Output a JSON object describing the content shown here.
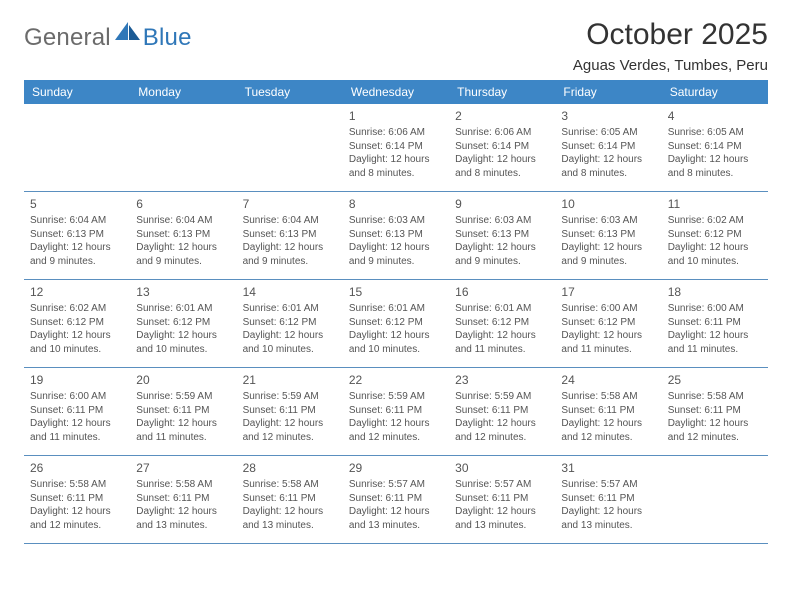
{
  "brand": {
    "name_a": "General",
    "name_b": "Blue"
  },
  "title": "October 2025",
  "subtitle": "Aguas Verdes, Tumbes, Peru",
  "colors": {
    "accent": "#3d86c6",
    "rule": "#5a8fbf",
    "text": "#333333",
    "muted": "#555555",
    "page_bg": "#ffffff"
  },
  "day_names": [
    "Sunday",
    "Monday",
    "Tuesday",
    "Wednesday",
    "Thursday",
    "Friday",
    "Saturday"
  ],
  "weeks": [
    [
      null,
      null,
      null,
      {
        "n": "1",
        "sunrise": "6:06 AM",
        "sunset": "6:14 PM",
        "daylight": "12 hours and 8 minutes."
      },
      {
        "n": "2",
        "sunrise": "6:06 AM",
        "sunset": "6:14 PM",
        "daylight": "12 hours and 8 minutes."
      },
      {
        "n": "3",
        "sunrise": "6:05 AM",
        "sunset": "6:14 PM",
        "daylight": "12 hours and 8 minutes."
      },
      {
        "n": "4",
        "sunrise": "6:05 AM",
        "sunset": "6:14 PM",
        "daylight": "12 hours and 8 minutes."
      }
    ],
    [
      {
        "n": "5",
        "sunrise": "6:04 AM",
        "sunset": "6:13 PM",
        "daylight": "12 hours and 9 minutes."
      },
      {
        "n": "6",
        "sunrise": "6:04 AM",
        "sunset": "6:13 PM",
        "daylight": "12 hours and 9 minutes."
      },
      {
        "n": "7",
        "sunrise": "6:04 AM",
        "sunset": "6:13 PM",
        "daylight": "12 hours and 9 minutes."
      },
      {
        "n": "8",
        "sunrise": "6:03 AM",
        "sunset": "6:13 PM",
        "daylight": "12 hours and 9 minutes."
      },
      {
        "n": "9",
        "sunrise": "6:03 AM",
        "sunset": "6:13 PM",
        "daylight": "12 hours and 9 minutes."
      },
      {
        "n": "10",
        "sunrise": "6:03 AM",
        "sunset": "6:13 PM",
        "daylight": "12 hours and 9 minutes."
      },
      {
        "n": "11",
        "sunrise": "6:02 AM",
        "sunset": "6:12 PM",
        "daylight": "12 hours and 10 minutes."
      }
    ],
    [
      {
        "n": "12",
        "sunrise": "6:02 AM",
        "sunset": "6:12 PM",
        "daylight": "12 hours and 10 minutes."
      },
      {
        "n": "13",
        "sunrise": "6:01 AM",
        "sunset": "6:12 PM",
        "daylight": "12 hours and 10 minutes."
      },
      {
        "n": "14",
        "sunrise": "6:01 AM",
        "sunset": "6:12 PM",
        "daylight": "12 hours and 10 minutes."
      },
      {
        "n": "15",
        "sunrise": "6:01 AM",
        "sunset": "6:12 PM",
        "daylight": "12 hours and 10 minutes."
      },
      {
        "n": "16",
        "sunrise": "6:01 AM",
        "sunset": "6:12 PM",
        "daylight": "12 hours and 11 minutes."
      },
      {
        "n": "17",
        "sunrise": "6:00 AM",
        "sunset": "6:12 PM",
        "daylight": "12 hours and 11 minutes."
      },
      {
        "n": "18",
        "sunrise": "6:00 AM",
        "sunset": "6:11 PM",
        "daylight": "12 hours and 11 minutes."
      }
    ],
    [
      {
        "n": "19",
        "sunrise": "6:00 AM",
        "sunset": "6:11 PM",
        "daylight": "12 hours and 11 minutes."
      },
      {
        "n": "20",
        "sunrise": "5:59 AM",
        "sunset": "6:11 PM",
        "daylight": "12 hours and 11 minutes."
      },
      {
        "n": "21",
        "sunrise": "5:59 AM",
        "sunset": "6:11 PM",
        "daylight": "12 hours and 12 minutes."
      },
      {
        "n": "22",
        "sunrise": "5:59 AM",
        "sunset": "6:11 PM",
        "daylight": "12 hours and 12 minutes."
      },
      {
        "n": "23",
        "sunrise": "5:59 AM",
        "sunset": "6:11 PM",
        "daylight": "12 hours and 12 minutes."
      },
      {
        "n": "24",
        "sunrise": "5:58 AM",
        "sunset": "6:11 PM",
        "daylight": "12 hours and 12 minutes."
      },
      {
        "n": "25",
        "sunrise": "5:58 AM",
        "sunset": "6:11 PM",
        "daylight": "12 hours and 12 minutes."
      }
    ],
    [
      {
        "n": "26",
        "sunrise": "5:58 AM",
        "sunset": "6:11 PM",
        "daylight": "12 hours and 12 minutes."
      },
      {
        "n": "27",
        "sunrise": "5:58 AM",
        "sunset": "6:11 PM",
        "daylight": "12 hours and 13 minutes."
      },
      {
        "n": "28",
        "sunrise": "5:58 AM",
        "sunset": "6:11 PM",
        "daylight": "12 hours and 13 minutes."
      },
      {
        "n": "29",
        "sunrise": "5:57 AM",
        "sunset": "6:11 PM",
        "daylight": "12 hours and 13 minutes."
      },
      {
        "n": "30",
        "sunrise": "5:57 AM",
        "sunset": "6:11 PM",
        "daylight": "12 hours and 13 minutes."
      },
      {
        "n": "31",
        "sunrise": "5:57 AM",
        "sunset": "6:11 PM",
        "daylight": "12 hours and 13 minutes."
      },
      null
    ]
  ],
  "labels": {
    "sunrise": "Sunrise:",
    "sunset": "Sunset:",
    "daylight": "Daylight:"
  }
}
